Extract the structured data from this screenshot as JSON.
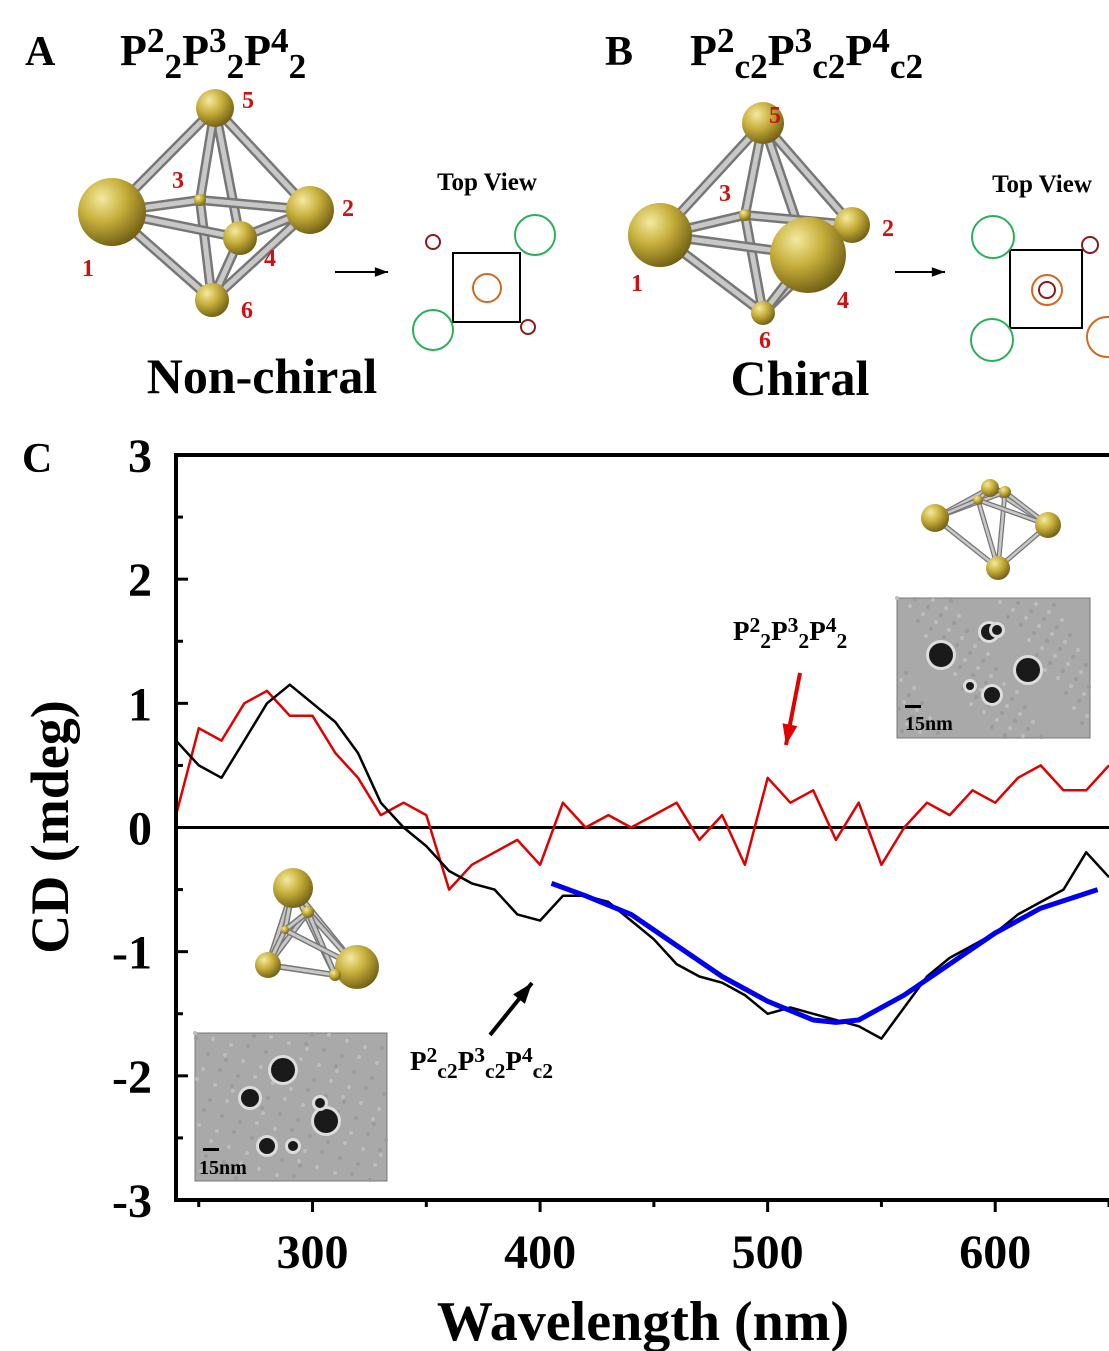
{
  "panels": [
    {
      "label": "A",
      "formula": [
        [
          "P",
          "2",
          "2"
        ],
        [
          "P",
          "3",
          "2"
        ],
        [
          "P",
          "4",
          "2"
        ]
      ],
      "vertices": [
        "1",
        "2",
        "3",
        "4",
        "5",
        "6"
      ],
      "view_label": "Top View",
      "caption": "Non-chiral"
    },
    {
      "label": "B",
      "formula": [
        [
          "P",
          "2",
          "c2"
        ],
        [
          "P",
          "3",
          "c2"
        ],
        [
          "P",
          "4",
          "c2"
        ]
      ],
      "vertices": [
        "1",
        "2",
        "3",
        "4",
        "5",
        "6"
      ],
      "view_label": "Top View",
      "caption": "Chiral"
    }
  ],
  "chart_data": {
    "type": "line",
    "panel_label": "C",
    "x_label": "Wavelength (nm)",
    "y_label": "CD (mdeg)",
    "xlim": [
      240,
      650
    ],
    "ylim": [
      -3,
      3
    ],
    "xticks": [
      300,
      400,
      500,
      600
    ],
    "yticks": [
      -3,
      -2,
      -1,
      0,
      1,
      2,
      3
    ],
    "x_minor_ticks": [
      250,
      350,
      450,
      550,
      650
    ],
    "y_minor_ticks": [
      -2.5,
      -1.5,
      -0.5,
      0.5,
      1.5,
      2.5
    ],
    "inset_scale": "15nm",
    "series": [
      {
        "label": [
          [
            "P",
            "2",
            "2"
          ],
          [
            "P",
            "3",
            "2"
          ],
          [
            "P",
            "4",
            "2"
          ]
        ],
        "color": "#e00000",
        "x": [
          240,
          250,
          260,
          270,
          280,
          290,
          300,
          310,
          320,
          330,
          340,
          350,
          360,
          370,
          380,
          390,
          400,
          410,
          420,
          430,
          440,
          450,
          460,
          470,
          480,
          490,
          500,
          510,
          520,
          530,
          540,
          550,
          560,
          570,
          580,
          590,
          600,
          610,
          620,
          630,
          640,
          650
        ],
        "values": [
          0.1,
          0.8,
          0.7,
          1.0,
          1.1,
          0.9,
          0.9,
          0.6,
          0.4,
          0.1,
          0.2,
          0.1,
          -0.5,
          -0.3,
          -0.2,
          -0.1,
          -0.3,
          0.2,
          0.0,
          0.1,
          0.0,
          0.1,
          0.2,
          -0.1,
          0.1,
          -0.3,
          0.4,
          0.2,
          0.3,
          -0.1,
          0.2,
          -0.3,
          0.0,
          0.2,
          0.1,
          0.3,
          0.2,
          0.4,
          0.5,
          0.3,
          0.3,
          0.5
        ]
      },
      {
        "label": [
          [
            "P",
            "2",
            "c2"
          ],
          [
            "P",
            "3",
            "c2"
          ],
          [
            "P",
            "4",
            "c2"
          ]
        ],
        "color": "#000000",
        "x": [
          240,
          250,
          260,
          270,
          280,
          290,
          300,
          310,
          320,
          330,
          340,
          350,
          360,
          370,
          380,
          390,
          400,
          410,
          420,
          430,
          440,
          450,
          460,
          470,
          480,
          490,
          500,
          510,
          520,
          530,
          540,
          550,
          560,
          570,
          580,
          590,
          600,
          610,
          620,
          630,
          640,
          650
        ],
        "values": [
          0.7,
          0.5,
          0.4,
          0.7,
          1.0,
          1.15,
          1.0,
          0.85,
          0.6,
          0.2,
          0.0,
          -0.15,
          -0.35,
          -0.45,
          -0.5,
          -0.7,
          -0.75,
          -0.55,
          -0.55,
          -0.6,
          -0.75,
          -0.9,
          -1.1,
          -1.2,
          -1.25,
          -1.35,
          -1.5,
          -1.45,
          -1.5,
          -1.55,
          -1.6,
          -1.7,
          -1.45,
          -1.2,
          -1.05,
          -0.95,
          -0.85,
          -0.7,
          -0.6,
          -0.5,
          -0.2,
          -0.4
        ]
      },
      {
        "color": "#0000ee",
        "x": [
          405,
          420,
          440,
          460,
          480,
          500,
          520,
          530,
          540,
          560,
          580,
          600,
          620,
          645
        ],
        "values": [
          -0.45,
          -0.55,
          -0.7,
          -0.95,
          -1.2,
          -1.4,
          -1.55,
          -1.57,
          -1.55,
          -1.35,
          -1.1,
          -0.85,
          -0.65,
          -0.5
        ]
      }
    ]
  }
}
